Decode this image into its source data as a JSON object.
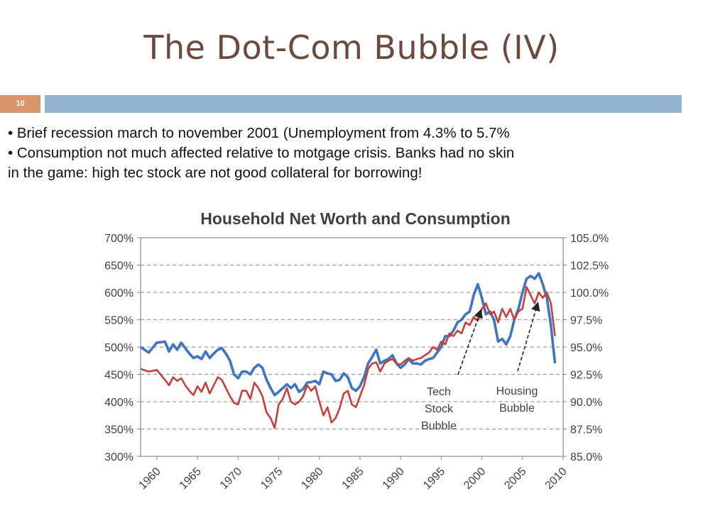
{
  "slide": {
    "title": "The Dot-Com Bubble (IV)",
    "number": "10",
    "bullets": [
      "• Brief recession march to november 2001 (Unemployment from 4.3% to 5.7%",
      "• Consumption not much affected relative to motgage crisis. Banks had no skin",
      "in the game: high tec stock are not good collateral for borrowing!"
    ]
  },
  "colors": {
    "title": "#6b4a3d",
    "accent_orange": "#d8976a",
    "accent_blue": "#94b3cf",
    "net_worth_line": "#3f74bf",
    "consumption_line": "#c4403d"
  },
  "chart_data": {
    "type": "line",
    "title": "Household Net Worth and Consumption",
    "xlabel": "",
    "ylabel": "",
    "xlim": [
      1958,
      2010
    ],
    "ylim": [
      300,
      700
    ],
    "y2lim": [
      85.0,
      105.0
    ],
    "x_ticks": [
      "1960",
      "1965",
      "1970",
      "1975",
      "1980",
      "1985",
      "1990",
      "1995",
      "2000",
      "2005",
      "2010"
    ],
    "y_ticks": [
      "300%",
      "350%",
      "400%",
      "450%",
      "500%",
      "550%",
      "600%",
      "650%",
      "700%"
    ],
    "y2_ticks": [
      "85.0%",
      "87.5%",
      "90.0%",
      "92.5%",
      "95.0%",
      "97.5%",
      "100.0%",
      "102.5%",
      "105.0%"
    ],
    "grid": "horizontal dashed",
    "series": [
      {
        "axis": "left",
        "color": "#3f74bf",
        "x": [
          1958,
          1959,
          1960,
          1961,
          1961.5,
          1962,
          1962.5,
          1963,
          1963.5,
          1964,
          1964.5,
          1965,
          1965.5,
          1966,
          1966.5,
          1967,
          1967.5,
          1968,
          1968.5,
          1969,
          1969.5,
          1970,
          1970.5,
          1971,
          1971.5,
          1972,
          1972.5,
          1973,
          1973.5,
          1974,
          1974.5,
          1975,
          1975.5,
          1976,
          1976.5,
          1977,
          1977.5,
          1978,
          1978.5,
          1979,
          1979.5,
          1980,
          1980.5,
          1981,
          1981.5,
          1982,
          1982.5,
          1983,
          1983.5,
          1984,
          1984.5,
          1985,
          1985.5,
          1986,
          1986.5,
          1987,
          1987.5,
          1988,
          1988.5,
          1989,
          1989.5,
          1990,
          1990.5,
          1991,
          1991.5,
          1992,
          1992.5,
          1993,
          1993.5,
          1994,
          1994.5,
          1995,
          1995.5,
          1996,
          1996.5,
          1997,
          1997.5,
          1998,
          1998.5,
          1999,
          1999.5,
          2000,
          2000.5,
          2001,
          2001.5,
          2002,
          2002.5,
          2003,
          2003.5,
          2004,
          2004.5,
          2005,
          2005.5,
          2006,
          2006.5,
          2007,
          2007.5,
          2008,
          2008.5,
          2009
        ],
        "y": [
          500,
          490,
          508,
          510,
          492,
          505,
          495,
          508,
          498,
          488,
          480,
          483,
          478,
          492,
          480,
          488,
          495,
          498,
          488,
          475,
          450,
          443,
          455,
          455,
          450,
          462,
          468,
          462,
          440,
          425,
          412,
          418,
          425,
          432,
          425,
          432,
          418,
          423,
          435,
          436,
          438,
          432,
          455,
          452,
          450,
          438,
          440,
          452,
          445,
          425,
          420,
          428,
          445,
          470,
          482,
          495,
          470,
          475,
          478,
          485,
          470,
          462,
          468,
          478,
          470,
          470,
          468,
          475,
          478,
          480,
          490,
          500,
          520,
          520,
          530,
          545,
          550,
          560,
          565,
          595,
          615,
          590,
          560,
          565,
          550,
          510,
          515,
          505,
          520,
          550,
          570,
          600,
          625,
          630,
          625,
          635,
          615,
          590,
          540,
          470
        ]
      },
      {
        "axis": "left",
        "color": "#c4403d",
        "x": [
          1958,
          1959,
          1960,
          1961,
          1961.5,
          1962,
          1962.5,
          1963,
          1963.5,
          1964,
          1964.5,
          1965,
          1965.5,
          1966,
          1966.5,
          1967,
          1967.5,
          1968,
          1968.5,
          1969,
          1969.5,
          1970,
          1970.5,
          1971,
          1971.5,
          1972,
          1972.5,
          1973,
          1973.5,
          1974,
          1974.5,
          1975,
          1975.5,
          1976,
          1976.5,
          1977,
          1977.5,
          1978,
          1978.5,
          1979,
          1979.5,
          1980,
          1980.5,
          1981,
          1981.5,
          1982,
          1982.5,
          1983,
          1983.5,
          1984,
          1984.5,
          1985,
          1985.5,
          1986,
          1986.5,
          1987,
          1987.5,
          1988,
          1988.5,
          1989,
          1989.5,
          1990,
          1990.5,
          1991,
          1991.5,
          1992,
          1992.5,
          1993,
          1993.5,
          1994,
          1994.5,
          1995,
          1995.5,
          1996,
          1996.5,
          1997,
          1997.5,
          1998,
          1998.5,
          1999,
          1999.5,
          2000,
          2000.5,
          2001,
          2001.5,
          2002,
          2002.5,
          2003,
          2003.5,
          2004,
          2004.5,
          2005,
          2005.5,
          2006,
          2006.5,
          2007,
          2007.5,
          2008,
          2008.5,
          2009
        ],
        "y": [
          460,
          455,
          458,
          440,
          430,
          445,
          438,
          443,
          430,
          420,
          412,
          428,
          418,
          435,
          415,
          430,
          445,
          440,
          425,
          410,
          398,
          395,
          420,
          420,
          405,
          435,
          425,
          410,
          380,
          370,
          352,
          395,
          405,
          425,
          400,
          395,
          400,
          410,
          430,
          420,
          428,
          400,
          375,
          390,
          362,
          370,
          388,
          415,
          420,
          395,
          390,
          410,
          430,
          460,
          470,
          472,
          455,
          470,
          475,
          478,
          470,
          468,
          475,
          480,
          475,
          478,
          480,
          485,
          490,
          500,
          495,
          510,
          505,
          525,
          520,
          530,
          525,
          545,
          540,
          555,
          548,
          570,
          580,
          560,
          565,
          545,
          570,
          555,
          570,
          550,
          565,
          570,
          610,
          595,
          580,
          600,
          590,
          600,
          580,
          520
        ]
      }
    ],
    "annotations": [
      {
        "text": "Tech Stock Bubble",
        "lines": [
          "Tech",
          "Stock",
          "Bubble"
        ],
        "x": 1999.9,
        "y": 568
      },
      {
        "text": "Housing Bubble",
        "lines": [
          "Housing",
          "Bubble"
        ],
        "x": 2006.9,
        "y": 581
      }
    ]
  }
}
